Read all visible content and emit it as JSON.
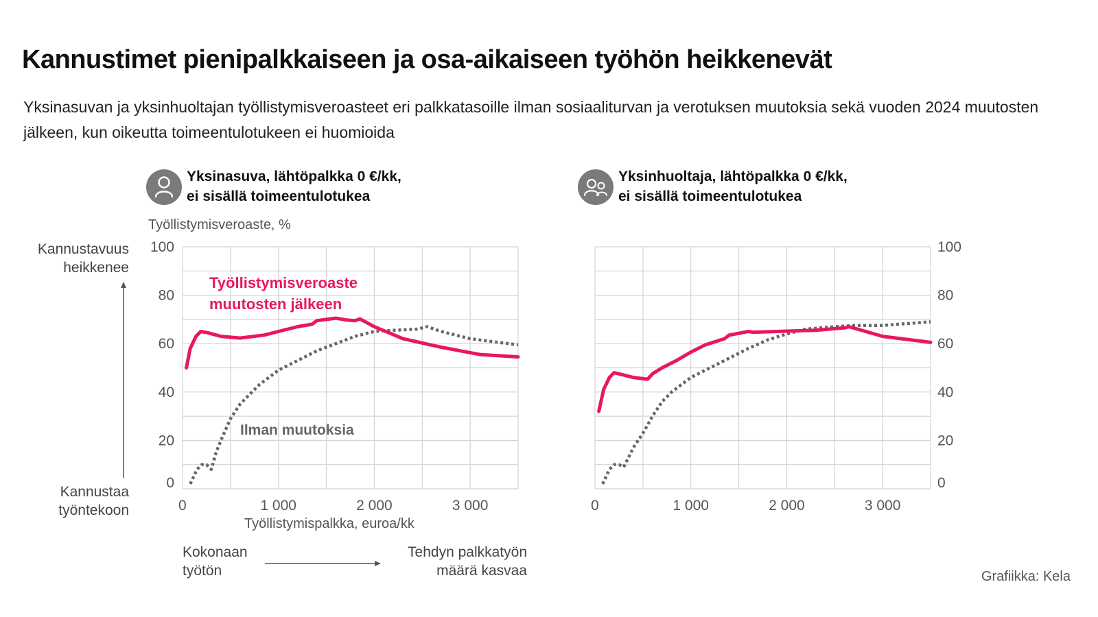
{
  "title": "Kannustimet pienipalkkaiseen ja osa-aikaiseen työhön heikkenevät",
  "subtitle": "Yksinasuvan ja yksinhuoltajan työllistymisveroasteet eri palkkatasoille ilman sosiaaliturvan ja verotuksen muutoksia sekä vuoden 2024 muutosten jälkeen, kun oikeutta toimeentulotukeen ei huomioida",
  "source": "Grafiikka: Kela",
  "y_axis_label": "Työllistymisveroaste, %",
  "x_axis_label": "Työllistymispalkka, euroa/kk",
  "direction_labels": {
    "up_line1": "Kannustavuus",
    "up_line2": "heikkenee",
    "down_line1": "Kannustaa",
    "down_line2": "työntekoon",
    "left_line1": "Kokonaan",
    "left_line2": "työtön",
    "right_line1": "Tehdyn palkkatyön",
    "right_line2": "määrä kasvaa"
  },
  "series_labels": {
    "after_line1": "Työllistymisveroaste",
    "after_line2": "muutosten jälkeen",
    "before": "Ilman muutoksia"
  },
  "colors": {
    "after": "#e8185e",
    "before": "#666666",
    "grid": "#d4d4d4",
    "icon_bg": "#7a7a7a"
  },
  "chart_data": [
    {
      "type": "line",
      "title_line1": "Yksinasuva, lähtöpalkka 0 €/kk,",
      "title_line2": "ei sisällä toimeentulotukea",
      "icon": "person-icon",
      "xlim": [
        0,
        3500
      ],
      "ylim": [
        0,
        100
      ],
      "x_ticks": [
        0,
        1000,
        2000,
        3000
      ],
      "x_tick_labels": [
        "0",
        "1 000",
        "2 000",
        "3 000"
      ],
      "y_ticks": [
        0,
        20,
        40,
        60,
        80,
        100
      ],
      "y_tick_labels": [
        "0",
        "20",
        "40",
        "60",
        "80",
        "100"
      ],
      "series": [
        {
          "name": "Työllistymisveroaste muutosten jälkeen",
          "style": "solid",
          "x": [
            40,
            80,
            140,
            190,
            260,
            400,
            600,
            850,
            1000,
            1200,
            1350,
            1400,
            1600,
            1700,
            1800,
            1850,
            2000,
            2300,
            2700,
            3100,
            3500
          ],
          "y": [
            50,
            58,
            63,
            65,
            64.5,
            63,
            62.3,
            63.5,
            65,
            67,
            68,
            69.5,
            70.5,
            69.8,
            69.5,
            70.2,
            67,
            62,
            58.5,
            55.5,
            54.5
          ]
        },
        {
          "name": "Ilman muutoksia",
          "style": "dotted",
          "x": [
            80,
            150,
            200,
            250,
            300,
            350,
            400,
            500,
            600,
            700,
            800,
            900,
            1000,
            1200,
            1400,
            1600,
            1800,
            2000,
            2200,
            2450,
            2550,
            2700,
            3000,
            3500
          ],
          "y": [
            2,
            8,
            10,
            10,
            8,
            15,
            20,
            29,
            35,
            39,
            43,
            46,
            49,
            53,
            57,
            60,
            63,
            65,
            65.5,
            66,
            67,
            65,
            62,
            59.5
          ]
        }
      ]
    },
    {
      "type": "line",
      "title_line1": "Yksinhuoltaja, lähtöpalkka 0 €/kk,",
      "title_line2": "ei sisällä toimeentulotukea",
      "icon": "two-persons-icon",
      "xlim": [
        0,
        3500
      ],
      "ylim": [
        0,
        100
      ],
      "x_ticks": [
        0,
        1000,
        2000,
        3000
      ],
      "x_tick_labels": [
        "0",
        "1 000",
        "2 000",
        "3 000"
      ],
      "y_ticks": [
        0,
        20,
        40,
        60,
        80,
        100
      ],
      "y_tick_labels": [
        "0",
        "20",
        "40",
        "60",
        "80",
        "100"
      ],
      "series": [
        {
          "name": "Työllistymisveroaste muutosten jälkeen",
          "style": "solid",
          "x": [
            40,
            90,
            150,
            200,
            300,
            400,
            550,
            600,
            700,
            850,
            1000,
            1150,
            1350,
            1400,
            1600,
            1650,
            1900,
            2300,
            2600,
            2650,
            3000,
            3500
          ],
          "y": [
            32,
            41,
            46,
            48,
            47,
            46,
            45.3,
            47.5,
            50,
            53,
            56.5,
            59.5,
            62,
            63.5,
            65,
            64.7,
            65,
            65.5,
            66.5,
            67,
            63,
            60.5
          ]
        },
        {
          "name": "Ilman muutoksia",
          "style": "dotted",
          "x": [
            80,
            150,
            200,
            250,
            300,
            350,
            400,
            500,
            600,
            700,
            800,
            900,
            1000,
            1200,
            1400,
            1600,
            1800,
            2000,
            2200,
            2500,
            2700,
            3000,
            3500
          ],
          "y": [
            2,
            8,
            10,
            10,
            9,
            13,
            17,
            23,
            30,
            36,
            40,
            43,
            46,
            50,
            54,
            58,
            61.5,
            64,
            66,
            67,
            67.5,
            67.5,
            69
          ]
        }
      ]
    }
  ]
}
